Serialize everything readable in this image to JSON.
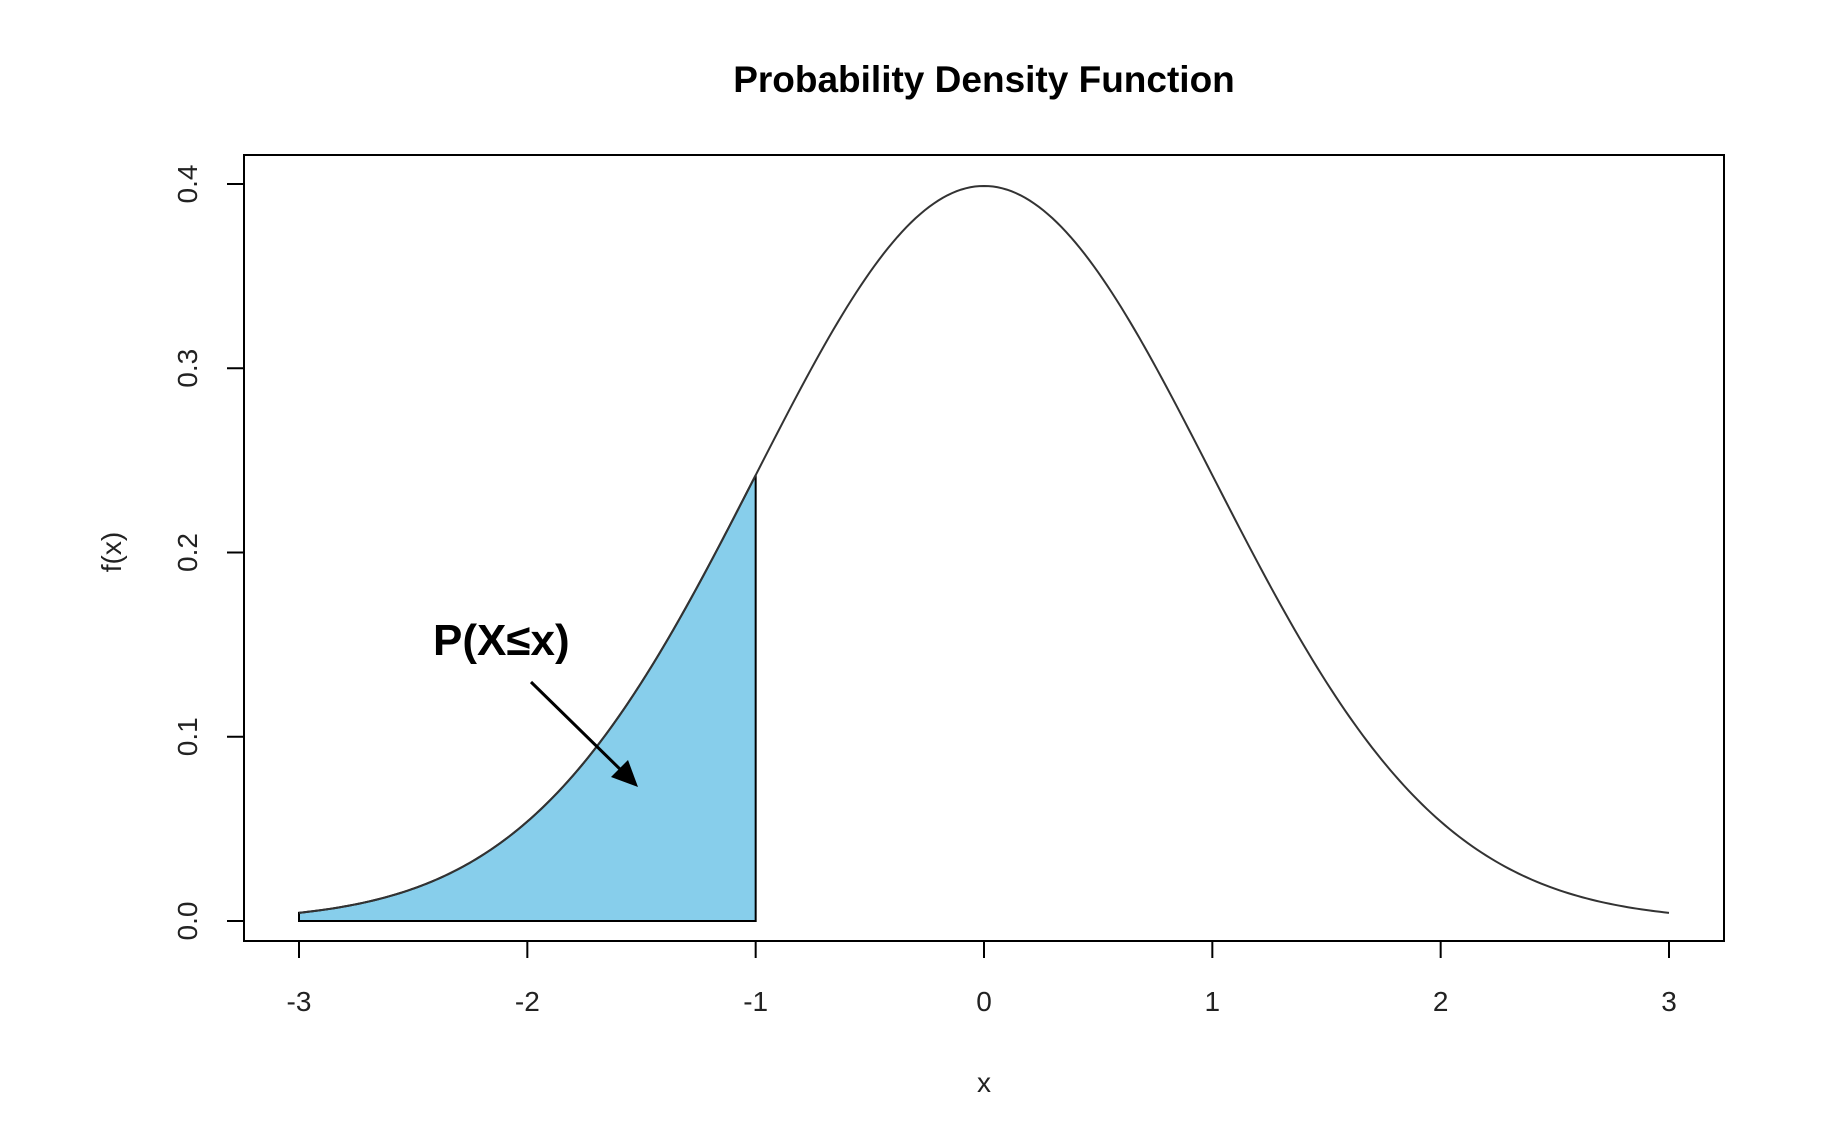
{
  "chart_data": {
    "type": "area",
    "title": "Probability Density Function",
    "xlabel": "x",
    "ylabel": "f(x)",
    "xlim": [
      -3,
      3
    ],
    "ylim": [
      0,
      0.4
    ],
    "x_ticks": [
      "-3",
      "-2",
      "-1",
      "0",
      "1",
      "2",
      "3"
    ],
    "y_ticks": [
      "0.0",
      "0.1",
      "0.2",
      "0.3",
      "0.4"
    ],
    "curve": {
      "description": "standard normal density",
      "x_range": [
        -3,
        3
      ],
      "x": [
        -3,
        -2.5,
        -2,
        -1.5,
        -1,
        -0.5,
        0,
        0.5,
        1,
        1.5,
        2,
        2.5,
        3
      ],
      "y": [
        0.0044,
        0.0175,
        0.054,
        0.1295,
        0.242,
        0.3521,
        0.3989,
        0.3521,
        0.242,
        0.1295,
        0.054,
        0.0175,
        0.0044
      ]
    },
    "shaded_region": {
      "from": -3,
      "to": -1,
      "color": "#87CEEB"
    },
    "annotation": {
      "text": "P(X≤x)"
    },
    "grid": false,
    "line_color": "#333333"
  }
}
